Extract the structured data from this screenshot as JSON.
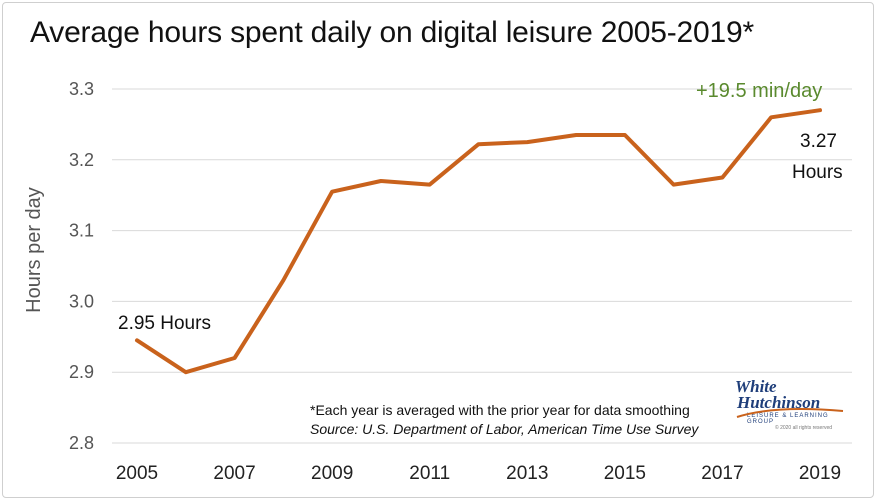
{
  "title": "Average hours spent daily on digital leisure 2005-2019*",
  "chart_data": {
    "type": "line",
    "x": [
      2005,
      2006,
      2007,
      2008,
      2009,
      2010,
      2011,
      2012,
      2013,
      2014,
      2015,
      2016,
      2017,
      2018,
      2019
    ],
    "series": [
      {
        "values": [
          2.945,
          2.9,
          2.92,
          3.03,
          3.155,
          3.17,
          3.165,
          3.222,
          3.225,
          3.235,
          3.235,
          3.165,
          3.175,
          3.26,
          3.27
        ],
        "color": "#c9621c"
      }
    ],
    "ylabel": "Hours per day",
    "xlabel": "",
    "ylim": [
      2.8,
      3.3
    ],
    "yticks": [
      "2.8",
      "2.9",
      "3.0",
      "3.1",
      "3.2",
      "3.3"
    ],
    "xticks": [
      "2005",
      "2007",
      "2009",
      "2011",
      "2013",
      "2015",
      "2017",
      "2019"
    ],
    "grid": true,
    "annotations": {
      "start": "2.95 Hours",
      "end_value": "3.27",
      "end_unit": "Hours",
      "change": "+19.5 min/day"
    }
  },
  "footnote": "*Each year is averaged with the prior year for data smoothing",
  "source": "Source: U.S. Department of Labor, American Time Use Survey",
  "logo": {
    "line1": "White",
    "line2": "Hutchinson",
    "tagline": "LEISURE & LEARNING GROUP",
    "copyright": "© 2020 all rights reserved"
  },
  "colors": {
    "line": "#c9621c",
    "accent_green": "#5a8a2e",
    "grid": "#d9d9d9",
    "logo_blue": "#1f3e7a"
  }
}
